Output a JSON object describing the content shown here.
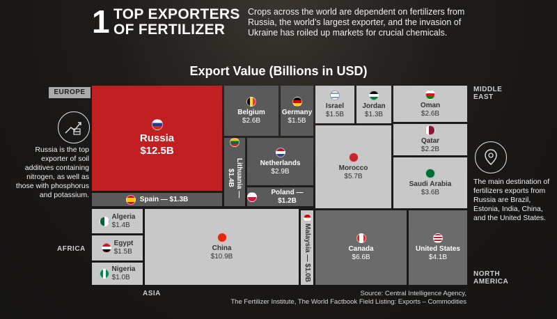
{
  "header": {
    "number": "1",
    "title_line1": "TOP EXPORTERS",
    "title_line2": "OF FERTILIZER",
    "description": "Crops across the world are dependent on fertilizers from Russia, the world’s largest exporter, and the invasion of Ukraine has roiled up markets for crucial chemicals."
  },
  "regions": {
    "europe": "EUROPE",
    "middle_east_1": "MIDDLE",
    "middle_east_2": "EAST",
    "africa": "AFRICA",
    "asia": "ASIA",
    "north_america_1": "NORTH",
    "north_america_2": "AMERICA"
  },
  "notes": {
    "russia": "Russia is the top exporter of soil additives containing nitrogen, as well as those with phosphorus and potassium.",
    "destination": "The main destination of fertilizers exports from Russia are Brazil, Estonia, India, China, and the United States."
  },
  "source": {
    "line1": "Source: Central Intelligence Agency,",
    "line2": "The Fertilizer Institute, The World Factbook Field Listing: Exports – Commodities"
  },
  "chart_data": {
    "type": "treemap",
    "title": "Export Value (Billions in USD)",
    "unit": "Billions USD",
    "items": [
      {
        "country": "Russia",
        "value": 12.5,
        "label": "$12.5B",
        "region": "Europe"
      },
      {
        "country": "Belgium",
        "value": 2.6,
        "label": "$2.6B",
        "region": "Europe"
      },
      {
        "country": "Germany",
        "value": 1.5,
        "label": "$1.5B",
        "region": "Europe"
      },
      {
        "country": "Lithuania",
        "value": 1.4,
        "label": "Lithuania — $1.4B",
        "region": "Europe"
      },
      {
        "country": "Netherlands",
        "value": 2.9,
        "label": "$2.9B",
        "region": "Europe"
      },
      {
        "country": "Poland",
        "value": 1.2,
        "label": "Poland — $1.2B",
        "region": "Europe"
      },
      {
        "country": "Spain",
        "value": 1.3,
        "label": "Spain — $1.3B",
        "region": "Europe"
      },
      {
        "country": "Israel",
        "value": 1.5,
        "label": "$1.5B",
        "region": "Middle East"
      },
      {
        "country": "Jordan",
        "value": 1.3,
        "label": "$1.3B",
        "region": "Middle East"
      },
      {
        "country": "Oman",
        "value": 2.6,
        "label": "$2.6B",
        "region": "Middle East"
      },
      {
        "country": "Qatar",
        "value": 2.2,
        "label": "$2.2B",
        "region": "Middle East"
      },
      {
        "country": "Saudi Arabia",
        "value": 3.6,
        "label": "$3.6B",
        "region": "Middle East"
      },
      {
        "country": "Morocco",
        "value": 5.7,
        "label": "$5.7B",
        "region": "Africa"
      },
      {
        "country": "Algeria",
        "value": 1.4,
        "label": "$1.4B",
        "region": "Africa"
      },
      {
        "country": "Egypt",
        "value": 1.5,
        "label": "$1.5B",
        "region": "Africa"
      },
      {
        "country": "Nigeria",
        "value": 1.0,
        "label": "$1.0B",
        "region": "Africa"
      },
      {
        "country": "China",
        "value": 10.9,
        "label": "$10.9B",
        "region": "Asia"
      },
      {
        "country": "Malaysia",
        "value": 1.0,
        "label": "Malaysia — $1.0B",
        "region": "Asia"
      },
      {
        "country": "Canada",
        "value": 6.6,
        "label": "$6.6B",
        "region": "North America"
      },
      {
        "country": "United States",
        "value": 4.1,
        "label": "$4.1B",
        "region": "North America"
      }
    ]
  },
  "colors": {
    "russia": "#c21f22",
    "europe_tiles": "#5a5a5a",
    "other_tiles": "#c8c8c8",
    "north_america_tiles": "#6b6b6b"
  }
}
